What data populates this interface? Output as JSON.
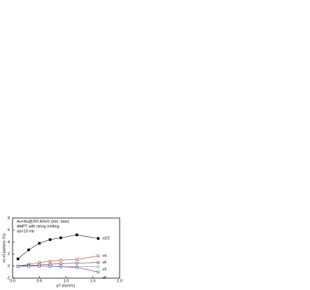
{
  "chart_data": {
    "type": "line",
    "annotations": [
      "Au+Au@200 AGeV (min. bias)",
      "AMPT with string melting",
      "σp=10 mb"
    ],
    "x_label": "pT (GeV/c)",
    "y_label": "vn of partons (%)",
    "x": [
      0.1,
      0.3,
      0.5,
      0.7,
      0.9,
      1.2,
      1.6
    ],
    "series": [
      {
        "name": "v2/2",
        "color": "#000000",
        "values": [
          1.2,
          2.7,
          3.8,
          4.4,
          4.7,
          5.2,
          4.6
        ]
      },
      {
        "name": "v4",
        "color": "#d62020",
        "values": [
          0,
          0.3,
          0.6,
          0.8,
          1.0,
          1.1,
          1.7
        ]
      },
      {
        "name": "v6",
        "color": "#333333",
        "values": [
          0,
          0.1,
          0.2,
          0.3,
          0.4,
          0.5,
          0.6
        ]
      },
      {
        "name": "v3",
        "color": "#888888",
        "values": [
          0,
          0,
          0,
          0,
          -0.1,
          -0.1,
          -0.1
        ]
      },
      {
        "name": "v5",
        "color": "#2030c0",
        "values": [
          0,
          0,
          0,
          0,
          -0.1,
          -0.2,
          -1.0
        ]
      }
    ],
    "xlim": [
      0,
      2
    ],
    "xticks": [
      {
        "value": 0,
        "label": "0.0"
      },
      {
        "value": 0.5,
        "label": "0.5"
      },
      {
        "value": 1,
        "label": "1.0"
      },
      {
        "value": 1.5,
        "label": "1.5"
      },
      {
        "value": 2,
        "label": "2.0"
      }
    ],
    "ylim": [
      -2,
      8
    ],
    "yticks": [
      -2,
      0,
      2,
      4,
      6,
      8
    ]
  }
}
